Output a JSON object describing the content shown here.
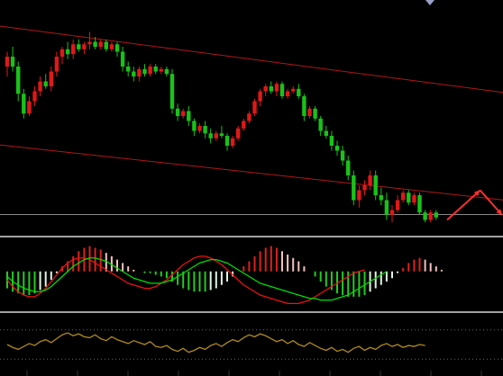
{
  "chart_data": {
    "type": "candlestick",
    "background": "#000000",
    "colors": {
      "up": "#e01818",
      "down": "#19c219",
      "channel": "#b01818",
      "divider": "#d8d8d8",
      "hist_up": "#e02020",
      "hist_down": "#22cc22",
      "hist_fade": "#f0f0f0",
      "signal_green": "#00dd00",
      "signal_red": "#ee1111",
      "oscillator": "#b08a1a",
      "reference": "#8a8a8a",
      "arrow": "#ff3030"
    },
    "price": {
      "candles": [
        {
          "o": 64,
          "h": 70,
          "l": 60,
          "c": 68
        },
        {
          "o": 68,
          "h": 72,
          "l": 62,
          "c": 64
        },
        {
          "o": 64,
          "h": 66,
          "l": 50,
          "c": 53
        },
        {
          "o": 53,
          "h": 55,
          "l": 43,
          "c": 45
        },
        {
          "o": 45,
          "h": 52,
          "l": 44,
          "c": 50
        },
        {
          "o": 50,
          "h": 56,
          "l": 48,
          "c": 54
        },
        {
          "o": 54,
          "h": 60,
          "l": 52,
          "c": 58
        },
        {
          "o": 58,
          "h": 61,
          "l": 55,
          "c": 56
        },
        {
          "o": 56,
          "h": 64,
          "l": 54,
          "c": 62
        },
        {
          "o": 62,
          "h": 70,
          "l": 60,
          "c": 68
        },
        {
          "o": 68,
          "h": 72,
          "l": 65,
          "c": 71
        },
        {
          "o": 71,
          "h": 74,
          "l": 67,
          "c": 69
        },
        {
          "o": 69,
          "h": 75,
          "l": 67,
          "c": 73
        },
        {
          "o": 73,
          "h": 75,
          "l": 70,
          "c": 71
        },
        {
          "o": 71,
          "h": 74,
          "l": 69,
          "c": 73
        },
        {
          "o": 73,
          "h": 78,
          "l": 71,
          "c": 74
        },
        {
          "o": 74,
          "h": 76,
          "l": 71,
          "c": 72
        },
        {
          "o": 72,
          "h": 75,
          "l": 71,
          "c": 74
        },
        {
          "o": 74,
          "h": 75,
          "l": 70,
          "c": 71
        },
        {
          "o": 71,
          "h": 74,
          "l": 70,
          "c": 73
        },
        {
          "o": 73,
          "h": 74,
          "l": 68,
          "c": 70
        },
        {
          "o": 70,
          "h": 72,
          "l": 62,
          "c": 64
        },
        {
          "o": 64,
          "h": 66,
          "l": 60,
          "c": 62
        },
        {
          "o": 62,
          "h": 64,
          "l": 58,
          "c": 60
        },
        {
          "o": 60,
          "h": 64,
          "l": 58,
          "c": 63
        },
        {
          "o": 63,
          "h": 65,
          "l": 60,
          "c": 61
        },
        {
          "o": 61,
          "h": 65,
          "l": 60,
          "c": 64
        },
        {
          "o": 64,
          "h": 65,
          "l": 61,
          "c": 62
        },
        {
          "o": 62,
          "h": 64,
          "l": 61,
          "c": 63
        },
        {
          "o": 63,
          "h": 64,
          "l": 60,
          "c": 61
        },
        {
          "o": 61,
          "h": 63,
          "l": 45,
          "c": 47
        },
        {
          "o": 47,
          "h": 49,
          "l": 42,
          "c": 44
        },
        {
          "o": 44,
          "h": 47,
          "l": 43,
          "c": 46
        },
        {
          "o": 46,
          "h": 48,
          "l": 40,
          "c": 42
        },
        {
          "o": 42,
          "h": 43,
          "l": 36,
          "c": 38
        },
        {
          "o": 38,
          "h": 41,
          "l": 37,
          "c": 40
        },
        {
          "o": 40,
          "h": 42,
          "l": 35,
          "c": 37
        },
        {
          "o": 37,
          "h": 39,
          "l": 33,
          "c": 35
        },
        {
          "o": 35,
          "h": 38,
          "l": 34,
          "c": 37
        },
        {
          "o": 37,
          "h": 40,
          "l": 35,
          "c": 36
        },
        {
          "o": 36,
          "h": 37,
          "l": 30,
          "c": 32
        },
        {
          "o": 32,
          "h": 36,
          "l": 31,
          "c": 35
        },
        {
          "o": 35,
          "h": 40,
          "l": 34,
          "c": 39
        },
        {
          "o": 39,
          "h": 43,
          "l": 38,
          "c": 42
        },
        {
          "o": 42,
          "h": 46,
          "l": 41,
          "c": 45
        },
        {
          "o": 45,
          "h": 51,
          "l": 44,
          "c": 50
        },
        {
          "o": 50,
          "h": 55,
          "l": 48,
          "c": 54
        },
        {
          "o": 54,
          "h": 57,
          "l": 52,
          "c": 56
        },
        {
          "o": 56,
          "h": 58,
          "l": 53,
          "c": 54
        },
        {
          "o": 54,
          "h": 58,
          "l": 52,
          "c": 57
        },
        {
          "o": 57,
          "h": 58,
          "l": 51,
          "c": 52
        },
        {
          "o": 52,
          "h": 55,
          "l": 51,
          "c": 54
        },
        {
          "o": 54,
          "h": 56,
          "l": 53,
          "c": 55
        },
        {
          "o": 55,
          "h": 57,
          "l": 51,
          "c": 52
        },
        {
          "o": 52,
          "h": 53,
          "l": 42,
          "c": 44
        },
        {
          "o": 44,
          "h": 48,
          "l": 43,
          "c": 47
        },
        {
          "o": 47,
          "h": 48,
          "l": 42,
          "c": 43
        },
        {
          "o": 43,
          "h": 44,
          "l": 36,
          "c": 38
        },
        {
          "o": 38,
          "h": 40,
          "l": 35,
          "c": 36
        },
        {
          "o": 36,
          "h": 38,
          "l": 30,
          "c": 32
        },
        {
          "o": 32,
          "h": 34,
          "l": 28,
          "c": 30
        },
        {
          "o": 30,
          "h": 32,
          "l": 24,
          "c": 26
        },
        {
          "o": 26,
          "h": 28,
          "l": 18,
          "c": 20
        },
        {
          "o": 20,
          "h": 22,
          "l": 8,
          "c": 10
        },
        {
          "o": 10,
          "h": 16,
          "l": 7,
          "c": 14
        },
        {
          "o": 14,
          "h": 18,
          "l": 12,
          "c": 16
        },
        {
          "o": 16,
          "h": 22,
          "l": 14,
          "c": 20
        },
        {
          "o": 20,
          "h": 22,
          "l": 10,
          "c": 12
        },
        {
          "o": 12,
          "h": 15,
          "l": 8,
          "c": 10
        },
        {
          "o": 10,
          "h": 13,
          "l": 2,
          "c": 4
        },
        {
          "o": 4,
          "h": 8,
          "l": 1,
          "c": 6
        },
        {
          "o": 6,
          "h": 12,
          "l": 5,
          "c": 10
        },
        {
          "o": 10,
          "h": 14,
          "l": 9,
          "c": 13
        },
        {
          "o": 13,
          "h": 14,
          "l": 8,
          "c": 9
        },
        {
          "o": 9,
          "h": 13,
          "l": 8,
          "c": 12
        },
        {
          "o": 12,
          "h": 13,
          "l": 4,
          "c": 5
        },
        {
          "o": 5,
          "h": 6,
          "l": 1,
          "c": 2
        },
        {
          "o": 2,
          "h": 6,
          "l": 1,
          "c": 5
        },
        {
          "o": 5,
          "h": 6,
          "l": 2,
          "c": 3
        }
      ],
      "ylim": [
        0,
        80
      ],
      "upper_channel": [
        [
          0,
          80
        ],
        [
          150,
          36
        ]
      ],
      "lower_channel": [
        [
          0,
          32
        ],
        [
          140,
          -2
        ]
      ],
      "reference_level": 2,
      "projection_arrows": [
        {
          "from": [
            80,
            2
          ],
          "to": [
            86,
            14
          ]
        },
        {
          "from": [
            86,
            14
          ],
          "to": [
            90,
            4
          ]
        }
      ]
    },
    "macd": {
      "histogram": [
        -10,
        -12,
        -13,
        -14,
        -14,
        -13,
        -11,
        -9,
        -5,
        -1,
        3,
        6,
        9,
        12,
        14,
        15,
        14,
        13,
        11,
        9,
        7,
        5,
        3,
        1,
        0,
        -1,
        -1,
        -2,
        -3,
        -4,
        -6,
        -8,
        -10,
        -11,
        -12,
        -12,
        -12,
        -11,
        -10,
        -8,
        -6,
        -3,
        0,
        3,
        6,
        9,
        12,
        14,
        15,
        14,
        12,
        10,
        8,
        6,
        3,
        0,
        -3,
        -6,
        -9,
        -11,
        -13,
        -14,
        -15,
        -15,
        -15,
        -14,
        -12,
        -10,
        -8,
        -6,
        -4,
        -1,
        2,
        5,
        7,
        8,
        7,
        5,
        3,
        1
      ],
      "signal_green": [
        -3,
        -6,
        -8,
        -10,
        -11,
        -12,
        -12,
        -11,
        -9,
        -6,
        -3,
        0,
        3,
        5,
        7,
        8,
        8,
        7,
        6,
        4,
        2,
        0,
        -2,
        -4,
        -5,
        -6,
        -7,
        -7,
        -7,
        -6,
        -5,
        -3,
        -1,
        1,
        3,
        5,
        6,
        7,
        7,
        6,
        5,
        3,
        1,
        -1,
        -3,
        -5,
        -7,
        -8,
        -9,
        -10,
        -11,
        -12,
        -13,
        -14,
        -15,
        -16,
        -16,
        -17,
        -17,
        -17,
        -16,
        -15,
        -14,
        -12,
        -10,
        -8,
        -6,
        -4,
        -2,
        0
      ],
      "signal_red": [
        -5,
        -9,
        -12,
        -14,
        -15,
        -15,
        -13,
        -10,
        -6,
        -2,
        2,
        5,
        7,
        8,
        8,
        7,
        5,
        3,
        1,
        -1,
        -3,
        -5,
        -7,
        -8,
        -9,
        -10,
        -10,
        -9,
        -7,
        -5,
        -2,
        1,
        4,
        6,
        8,
        9,
        9,
        8,
        6,
        4,
        1,
        -2,
        -5,
        -8,
        -10,
        -12,
        -14,
        -15,
        -16,
        -17,
        -18,
        -19,
        -19,
        -19,
        -18,
        -17,
        -15,
        -13,
        -11,
        -9,
        -7,
        -5,
        -3,
        -1,
        0,
        1
      ],
      "ylim": [
        -22,
        18
      ]
    },
    "oscillator": {
      "values": [
        50,
        44,
        40,
        46,
        52,
        48,
        56,
        60,
        54,
        62,
        70,
        74,
        68,
        72,
        66,
        64,
        70,
        62,
        58,
        66,
        60,
        56,
        52,
        58,
        54,
        50,
        56,
        46,
        44,
        48,
        40,
        36,
        42,
        34,
        38,
        44,
        40,
        48,
        52,
        46,
        54,
        60,
        56,
        64,
        70,
        66,
        72,
        68,
        62,
        56,
        60,
        52,
        58,
        50,
        46,
        54,
        48,
        42,
        38,
        44,
        36,
        40,
        34,
        42,
        46,
        38,
        44,
        40,
        48,
        52,
        46,
        50,
        44,
        48,
        46,
        50,
        48
      ],
      "ylim": [
        0,
        100
      ],
      "reference_levels": [
        80,
        20
      ]
    }
  }
}
